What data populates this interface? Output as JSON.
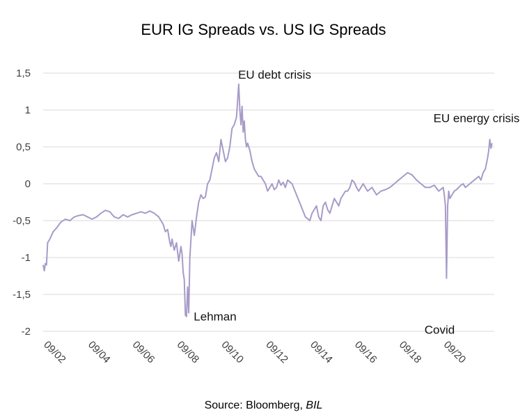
{
  "chart_data": {
    "type": "line",
    "title": "EUR IG Spreads vs. US IG Spreads",
    "xlabel": "",
    "ylabel": "",
    "ylim": [
      -2,
      1.5
    ],
    "yticks": [
      1.5,
      1,
      0.5,
      0,
      -0.5,
      -1,
      -1.5,
      -2
    ],
    "ytick_labels": [
      "1,5",
      "1",
      "0,5",
      "0",
      "-0,5",
      "-1",
      "-1,5",
      "-2"
    ],
    "xlim": [
      2002.0,
      2022.3
    ],
    "xticks": [
      2002,
      2004,
      2006,
      2008,
      2010,
      2012,
      2014,
      2016,
      2018,
      2020
    ],
    "xtick_labels": [
      "09/02",
      "09/04",
      "09/06",
      "09/08",
      "09/10",
      "09/12",
      "09/14",
      "09/16",
      "09/18",
      "09/20"
    ],
    "grid": true,
    "series_color": "#a79bc8",
    "series": [
      {
        "x": [
          2002.0,
          2002.05,
          2002.1,
          2002.15,
          2002.2,
          2002.3,
          2002.45,
          2002.6,
          2002.8,
          2003.0,
          2003.2,
          2003.4,
          2003.6,
          2003.8,
          2004.0,
          2004.2,
          2004.4,
          2004.6,
          2004.8,
          2005.0,
          2005.2,
          2005.4,
          2005.6,
          2005.8,
          2006.0,
          2006.2,
          2006.4,
          2006.6,
          2006.8,
          2007.0,
          2007.2,
          2007.3,
          2007.4,
          2007.5,
          2007.6,
          2007.7,
          2007.75,
          2007.8,
          2007.9,
          2008.0,
          2008.1,
          2008.2,
          2008.25,
          2008.3,
          2008.35,
          2008.4,
          2008.45,
          2008.5,
          2008.55,
          2008.6,
          2008.7,
          2008.8,
          2008.9,
          2009.0,
          2009.1,
          2009.2,
          2009.3,
          2009.4,
          2009.5,
          2009.6,
          2009.7,
          2009.8,
          2009.9,
          2010.0,
          2010.1,
          2010.2,
          2010.3,
          2010.4,
          2010.5,
          2010.6,
          2010.7,
          2010.8,
          2010.85,
          2010.9,
          2010.95,
          2011.0,
          2011.05,
          2011.1,
          2011.15,
          2011.2,
          2011.3,
          2011.4,
          2011.5,
          2011.6,
          2011.7,
          2011.8,
          2011.9,
          2012.0,
          2012.1,
          2012.2,
          2012.3,
          2012.4,
          2012.5,
          2012.6,
          2012.7,
          2012.8,
          2012.9,
          2013.0,
          2013.2,
          2013.4,
          2013.6,
          2013.8,
          2014.0,
          2014.1,
          2014.2,
          2014.3,
          2014.4,
          2014.5,
          2014.6,
          2014.7,
          2014.8,
          2014.9,
          2015.0,
          2015.1,
          2015.2,
          2015.3,
          2015.4,
          2015.5,
          2015.6,
          2015.7,
          2015.8,
          2015.9,
          2016.0,
          2016.1,
          2016.2,
          2016.3,
          2016.4,
          2016.6,
          2016.8,
          2017.0,
          2017.2,
          2017.4,
          2017.6,
          2017.8,
          2018.0,
          2018.2,
          2018.4,
          2018.6,
          2018.8,
          2019.0,
          2019.2,
          2019.4,
          2019.6,
          2019.8,
          2020.0,
          2020.05,
          2020.1,
          2020.15,
          2020.2,
          2020.25,
          2020.3,
          2020.4,
          2020.5,
          2020.6,
          2020.7,
          2020.8,
          2020.9,
          2021.0,
          2021.2,
          2021.4,
          2021.6,
          2021.7,
          2021.8,
          2021.9,
          2022.0,
          2022.05,
          2022.1,
          2022.15,
          2022.2
        ],
        "y": [
          -1.1,
          -1.18,
          -1.08,
          -1.1,
          -0.8,
          -0.75,
          -0.65,
          -0.6,
          -0.52,
          -0.48,
          -0.5,
          -0.45,
          -0.43,
          -0.42,
          -0.45,
          -0.48,
          -0.45,
          -0.4,
          -0.36,
          -0.38,
          -0.45,
          -0.47,
          -0.42,
          -0.45,
          -0.42,
          -0.4,
          -0.38,
          -0.4,
          -0.37,
          -0.4,
          -0.45,
          -0.5,
          -0.55,
          -0.65,
          -0.62,
          -0.8,
          -0.85,
          -0.75,
          -0.9,
          -0.8,
          -1.05,
          -0.85,
          -0.95,
          -1.2,
          -1.3,
          -1.78,
          -1.8,
          -1.4,
          -1.75,
          -1.0,
          -0.5,
          -0.7,
          -0.45,
          -0.25,
          -0.15,
          -0.2,
          -0.18,
          0.0,
          0.05,
          0.2,
          0.35,
          0.42,
          0.3,
          0.6,
          0.45,
          0.3,
          0.35,
          0.5,
          0.75,
          0.8,
          0.9,
          1.35,
          1.0,
          0.8,
          1.05,
          0.7,
          0.85,
          0.6,
          0.5,
          0.55,
          0.45,
          0.3,
          0.2,
          0.15,
          0.1,
          0.1,
          0.05,
          0.0,
          -0.1,
          -0.05,
          0.0,
          -0.08,
          -0.05,
          0.05,
          -0.02,
          0.02,
          -0.05,
          0.05,
          0.0,
          -0.15,
          -0.3,
          -0.45,
          -0.5,
          -0.4,
          -0.35,
          -0.3,
          -0.45,
          -0.5,
          -0.3,
          -0.25,
          -0.35,
          -0.4,
          -0.3,
          -0.2,
          -0.25,
          -0.3,
          -0.2,
          -0.15,
          -0.1,
          -0.1,
          -0.05,
          0.05,
          0.02,
          -0.05,
          -0.1,
          -0.05,
          0.0,
          -0.1,
          -0.05,
          -0.15,
          -0.1,
          -0.08,
          -0.05,
          0.0,
          0.05,
          0.1,
          0.15,
          0.12,
          0.05,
          0.0,
          -0.05,
          -0.05,
          -0.02,
          -0.1,
          -0.05,
          -0.15,
          -0.3,
          -1.28,
          -0.3,
          -0.1,
          -0.2,
          -0.15,
          -0.1,
          -0.08,
          -0.05,
          -0.02,
          0.0,
          -0.05,
          0.0,
          0.05,
          0.1,
          0.05,
          0.15,
          0.2,
          0.35,
          0.45,
          0.6,
          0.48,
          0.55
        ]
      }
    ],
    "annotations": [
      {
        "text": "EU debt crisis",
        "x": 2010.9,
        "y": 1.35
      },
      {
        "text": "EU energy crisis",
        "x": 2021.5,
        "y": 0.72
      },
      {
        "text": "Lehman",
        "x": 2008.4,
        "y": -1.78
      },
      {
        "text": "Covid",
        "x": 2020.1,
        "y": -1.28
      }
    ]
  },
  "source": {
    "prefix": "Source: Bloomberg, ",
    "emphasis": "BIL"
  }
}
